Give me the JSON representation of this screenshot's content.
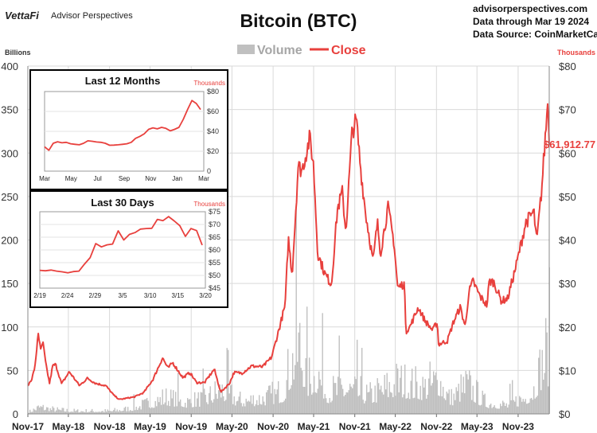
{
  "header": {
    "brand_logo_text": "VettaFi",
    "brand_name": "Advisor Perspectives",
    "title": "Bitcoin (BTC)",
    "site": "advisorperspectives.com",
    "data_through": "Data through Mar 19 2024",
    "data_source": "Data Source: CoinMarketCap"
  },
  "legend": {
    "volume": "Volume",
    "close": "Close"
  },
  "colors": {
    "close": "#e8403d",
    "volume": "#c0c0c0",
    "grid": "#d9d9d9",
    "axis_red": "#e8403d"
  },
  "chart_data": [
    {
      "type": "line",
      "id": "main",
      "title": "Bitcoin (BTC)",
      "left_axis_label": "Billions",
      "right_axis_label": "Thousands",
      "left_ylim": [
        0,
        400
      ],
      "left_ticks": [
        "0",
        "50",
        "100",
        "150",
        "200",
        "250",
        "300",
        "350",
        "400"
      ],
      "right_ylim": [
        0,
        80
      ],
      "right_ticks": [
        "$0",
        "$10",
        "$20",
        "$30",
        "$40",
        "$50",
        "$60",
        "$70",
        "$80"
      ],
      "x_tick_labels": [
        "Nov-17",
        "May-18",
        "Nov-18",
        "May-19",
        "Nov-19",
        "May-20",
        "Nov-20",
        "May-21",
        "Nov-21",
        "May-22",
        "Nov-22",
        "May-23",
        "Nov-23"
      ],
      "last_value_label": "$61,912.77",
      "series": [
        {
          "name": "Close",
          "unit": "thousands USD",
          "points": [
            [
              "2017-11-01",
              6.5
            ],
            [
              "2017-11-20",
              8.2
            ],
            [
              "2017-12-05",
              11.5
            ],
            [
              "2017-12-17",
              19.0
            ],
            [
              "2017-12-28",
              14.5
            ],
            [
              "2018-01-07",
              16.5
            ],
            [
              "2018-01-20",
              11.5
            ],
            [
              "2018-02-06",
              7.0
            ],
            [
              "2018-02-20",
              11.0
            ],
            [
              "2018-03-05",
              11.4
            ],
            [
              "2018-04-01",
              6.9
            ],
            [
              "2018-05-05",
              9.7
            ],
            [
              "2018-06-20",
              6.5
            ],
            [
              "2018-07-25",
              8.2
            ],
            [
              "2018-09-01",
              7.0
            ],
            [
              "2018-10-15",
              6.5
            ],
            [
              "2018-11-20",
              4.3
            ],
            [
              "2018-12-15",
              3.3
            ],
            [
              "2019-01-15",
              3.6
            ],
            [
              "2019-02-20",
              3.9
            ],
            [
              "2019-04-03",
              4.9
            ],
            [
              "2019-05-15",
              8.0
            ],
            [
              "2019-06-26",
              12.9
            ],
            [
              "2019-07-20",
              10.5
            ],
            [
              "2019-08-10",
              11.8
            ],
            [
              "2019-09-25",
              8.3
            ],
            [
              "2019-10-26",
              9.5
            ],
            [
              "2019-11-25",
              7.2
            ],
            [
              "2019-12-31",
              7.2
            ],
            [
              "2020-02-12",
              10.3
            ],
            [
              "2020-03-12",
              5.0
            ],
            [
              "2020-04-20",
              7.0
            ],
            [
              "2020-05-10",
              9.5
            ],
            [
              "2020-06-15",
              9.4
            ],
            [
              "2020-07-28",
              11.0
            ],
            [
              "2020-09-15",
              10.8
            ],
            [
              "2020-10-25",
              13.0
            ],
            [
              "2020-11-25",
              19.0
            ],
            [
              "2020-12-25",
              25.0
            ],
            [
              "2021-01-08",
              40.5
            ],
            [
              "2021-01-25",
              32.0
            ],
            [
              "2021-02-21",
              57.0
            ],
            [
              "2021-03-10",
              56.0
            ],
            [
              "2021-04-14",
              63.5
            ],
            [
              "2021-05-01",
              57.0
            ],
            [
              "2021-05-19",
              37.0
            ],
            [
              "2021-06-22",
              32.0
            ],
            [
              "2021-07-20",
              29.8
            ],
            [
              "2021-08-15",
              47.0
            ],
            [
              "2021-09-06",
              51.0
            ],
            [
              "2021-09-22",
              42.0
            ],
            [
              "2021-10-20",
              65.0
            ],
            [
              "2021-11-08",
              67.5
            ],
            [
              "2021-11-28",
              56.0
            ],
            [
              "2021-12-20",
              46.0
            ],
            [
              "2022-01-22",
              35.0
            ],
            [
              "2022-02-10",
              44.0
            ],
            [
              "2022-02-24",
              37.0
            ],
            [
              "2022-03-29",
              47.5
            ],
            [
              "2022-04-25",
              39.5
            ],
            [
              "2022-05-12",
              29.0
            ],
            [
              "2022-06-10",
              30.0
            ],
            [
              "2022-06-18",
              19.0
            ],
            [
              "2022-07-05",
              20.0
            ],
            [
              "2022-08-12",
              24.5
            ],
            [
              "2022-09-10",
              21.5
            ],
            [
              "2022-10-15",
              19.2
            ],
            [
              "2022-11-05",
              21.2
            ],
            [
              "2022-11-10",
              16.0
            ],
            [
              "2022-12-20",
              16.8
            ],
            [
              "2023-01-15",
              21.0
            ],
            [
              "2023-02-15",
              24.5
            ],
            [
              "2023-03-10",
              20.0
            ],
            [
              "2023-03-25",
              27.8
            ],
            [
              "2023-04-13",
              30.5
            ],
            [
              "2023-05-15",
              27.0
            ],
            [
              "2023-06-15",
              25.0
            ],
            [
              "2023-06-25",
              30.5
            ],
            [
              "2023-07-15",
              30.3
            ],
            [
              "2023-08-18",
              26.0
            ],
            [
              "2023-09-15",
              26.5
            ],
            [
              "2023-10-25",
              34.5
            ],
            [
              "2023-12-05",
              44.0
            ],
            [
              "2024-01-10",
              46.5
            ],
            [
              "2024-01-23",
              39.5
            ],
            [
              "2024-02-15",
              52.0
            ],
            [
              "2024-02-28",
              62.0
            ],
            [
              "2024-03-14",
              73.1
            ],
            [
              "2024-03-19",
              61.9
            ]
          ]
        },
        {
          "name": "Volume",
          "unit": "billions USD",
          "points": [
            [
              "2017-11-01",
              3
            ],
            [
              "2017-12-20",
              12
            ],
            [
              "2018-03-01",
              7
            ],
            [
              "2018-06-01",
              5
            ],
            [
              "2018-11-01",
              5
            ],
            [
              "2019-02-01",
              9
            ],
            [
              "2019-05-15",
              20
            ],
            [
              "2019-07-01",
              28
            ],
            [
              "2019-10-01",
              20
            ],
            [
              "2020-01-01",
              25
            ],
            [
              "2020-03-12",
              42
            ],
            [
              "2020-06-01",
              22
            ],
            [
              "2020-10-01",
              28
            ],
            [
              "2020-12-15",
              38
            ],
            [
              "2021-01-15",
              80
            ],
            [
              "2021-02-22",
              125
            ],
            [
              "2021-04-01",
              55
            ],
            [
              "2021-05-19",
              70
            ],
            [
              "2021-07-01",
              35
            ],
            [
              "2021-09-01",
              45
            ],
            [
              "2021-11-10",
              40
            ],
            [
              "2022-01-01",
              30
            ],
            [
              "2022-05-12",
              55
            ],
            [
              "2022-06-18",
              50
            ],
            [
              "2022-09-01",
              45
            ],
            [
              "2022-11-10",
              60
            ],
            [
              "2023-01-01",
              25
            ],
            [
              "2023-03-15",
              50
            ],
            [
              "2023-06-01",
              20
            ],
            [
              "2023-09-15",
              15
            ],
            [
              "2023-12-01",
              30
            ],
            [
              "2024-01-10",
              45
            ],
            [
              "2024-03-05",
              105
            ],
            [
              "2024-03-19",
              75
            ]
          ]
        }
      ]
    },
    {
      "type": "line",
      "id": "inset12",
      "title": "Last 12 Months",
      "y_unit_label": "Thousands",
      "ylim": [
        0,
        80
      ],
      "y_ticks": [
        "0",
        "$20",
        "$40",
        "$60",
        "$80"
      ],
      "x_tick_labels": [
        "Mar",
        "May",
        "Jul",
        "Sep",
        "Nov",
        "Jan",
        "Mar"
      ],
      "series": [
        {
          "name": "Close",
          "values": [
            24.5,
            21.0,
            28.0,
            29.5,
            28.5,
            29.0,
            27.5,
            27.0,
            26.5,
            28.0,
            30.5,
            30.0,
            29.3,
            29.0,
            28.0,
            26.0,
            26.2,
            26.5,
            27.0,
            27.5,
            29.0,
            33.0,
            35.0,
            37.5,
            42.0,
            43.5,
            42.5,
            44.0,
            43.0,
            40.5,
            42.0,
            44.0,
            52.0,
            62.0,
            71.0,
            68.0,
            61.9
          ]
        }
      ]
    },
    {
      "type": "line",
      "id": "inset30",
      "title": "Last 30 Days",
      "y_unit_label": "Thousands",
      "ylim": [
        45,
        75
      ],
      "y_ticks": [
        "$45",
        "$50",
        "$55",
        "$60",
        "$65",
        "$70",
        "$75"
      ],
      "x_tick_labels": [
        "2/19",
        "2/24",
        "2/29",
        "3/5",
        "3/10",
        "3/15",
        "3/20"
      ],
      "series": [
        {
          "name": "Close",
          "x": [
            0,
            1,
            2,
            3,
            4,
            5,
            6,
            7,
            8,
            9,
            10,
            11,
            12,
            13,
            14,
            15,
            16,
            17,
            18,
            19,
            20,
            21,
            22,
            23,
            24,
            25,
            26,
            27,
            28,
            29
          ],
          "values": [
            52.0,
            51.8,
            52.1,
            51.7,
            51.4,
            51.0,
            51.5,
            51.7,
            54.5,
            57.0,
            62.5,
            61.2,
            62.0,
            62.3,
            67.5,
            63.9,
            66.1,
            66.8,
            68.2,
            68.4,
            68.5,
            72.0,
            71.5,
            73.1,
            71.4,
            69.5,
            65.3,
            68.4,
            67.6,
            61.9
          ]
        }
      ]
    }
  ]
}
